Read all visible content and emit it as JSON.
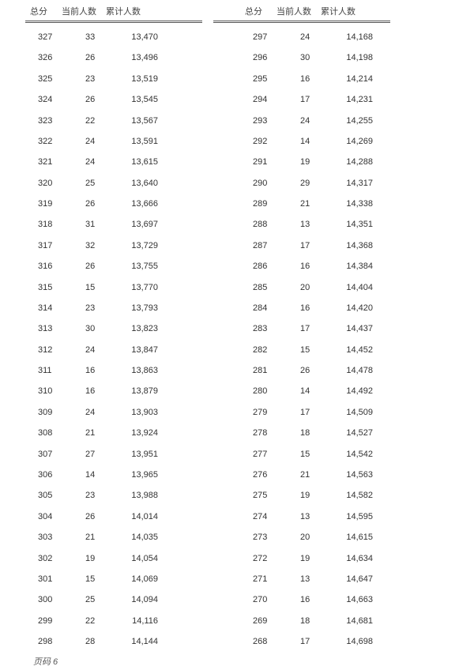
{
  "headers": [
    "总分",
    "当前人数",
    "累计人数"
  ],
  "left_table": [
    [
      "327",
      "33",
      "13,470"
    ],
    [
      "326",
      "26",
      "13,496"
    ],
    [
      "325",
      "23",
      "13,519"
    ],
    [
      "324",
      "26",
      "13,545"
    ],
    [
      "323",
      "22",
      "13,567"
    ],
    [
      "322",
      "24",
      "13,591"
    ],
    [
      "321",
      "24",
      "13,615"
    ],
    [
      "320",
      "25",
      "13,640"
    ],
    [
      "319",
      "26",
      "13,666"
    ],
    [
      "318",
      "31",
      "13,697"
    ],
    [
      "317",
      "32",
      "13,729"
    ],
    [
      "316",
      "26",
      "13,755"
    ],
    [
      "315",
      "15",
      "13,770"
    ],
    [
      "314",
      "23",
      "13,793"
    ],
    [
      "313",
      "30",
      "13,823"
    ],
    [
      "312",
      "24",
      "13,847"
    ],
    [
      "311",
      "16",
      "13,863"
    ],
    [
      "310",
      "16",
      "13,879"
    ],
    [
      "309",
      "24",
      "13,903"
    ],
    [
      "308",
      "21",
      "13,924"
    ],
    [
      "307",
      "27",
      "13,951"
    ],
    [
      "306",
      "14",
      "13,965"
    ],
    [
      "305",
      "23",
      "13,988"
    ],
    [
      "304",
      "26",
      "14,014"
    ],
    [
      "303",
      "21",
      "14,035"
    ],
    [
      "302",
      "19",
      "14,054"
    ],
    [
      "301",
      "15",
      "14,069"
    ],
    [
      "300",
      "25",
      "14,094"
    ],
    [
      "299",
      "22",
      "14,116"
    ],
    [
      "298",
      "28",
      "14,144"
    ]
  ],
  "right_table": [
    [
      "297",
      "24",
      "14,168"
    ],
    [
      "296",
      "30",
      "14,198"
    ],
    [
      "295",
      "16",
      "14,214"
    ],
    [
      "294",
      "17",
      "14,231"
    ],
    [
      "293",
      "24",
      "14,255"
    ],
    [
      "292",
      "14",
      "14,269"
    ],
    [
      "291",
      "19",
      "14,288"
    ],
    [
      "290",
      "29",
      "14,317"
    ],
    [
      "289",
      "21",
      "14,338"
    ],
    [
      "288",
      "13",
      "14,351"
    ],
    [
      "287",
      "17",
      "14,368"
    ],
    [
      "286",
      "16",
      "14,384"
    ],
    [
      "285",
      "20",
      "14,404"
    ],
    [
      "284",
      "16",
      "14,420"
    ],
    [
      "283",
      "17",
      "14,437"
    ],
    [
      "282",
      "15",
      "14,452"
    ],
    [
      "281",
      "26",
      "14,478"
    ],
    [
      "280",
      "14",
      "14,492"
    ],
    [
      "279",
      "17",
      "14,509"
    ],
    [
      "278",
      "18",
      "14,527"
    ],
    [
      "277",
      "15",
      "14,542"
    ],
    [
      "276",
      "21",
      "14,563"
    ],
    [
      "275",
      "19",
      "14,582"
    ],
    [
      "274",
      "13",
      "14,595"
    ],
    [
      "273",
      "20",
      "14,615"
    ],
    [
      "272",
      "19",
      "14,634"
    ],
    [
      "271",
      "13",
      "14,647"
    ],
    [
      "270",
      "16",
      "14,663"
    ],
    [
      "269",
      "18",
      "14,681"
    ],
    [
      "268",
      "17",
      "14,698"
    ]
  ],
  "footer": "页码 6"
}
